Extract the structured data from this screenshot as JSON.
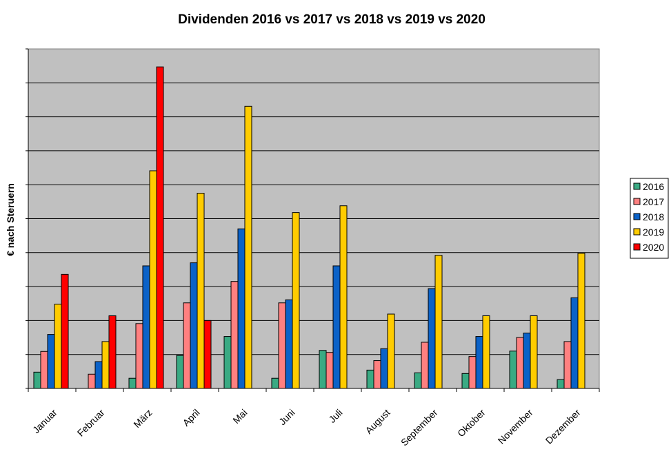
{
  "chart_data": {
    "type": "bar",
    "title": "Dividenden 2016 vs 2017 vs 2018 vs 2019 vs 2020",
    "xlabel": "",
    "ylabel": "€ nach Steruern",
    "ylim": [
      0,
      100
    ],
    "grid": true,
    "legend_position": "right",
    "categories": [
      "Januar",
      "Februar",
      "März",
      "April",
      "Mai",
      "Juni",
      "Juli",
      "August",
      "September",
      "Oktober",
      "November",
      "Dezember"
    ],
    "series": [
      {
        "name": "2016",
        "color": "#3AAA83",
        "values": [
          4.8,
          0,
          3.0,
          9.7,
          15.3,
          3.0,
          11.2,
          5.4,
          4.6,
          4.4,
          11.0,
          2.6
        ]
      },
      {
        "name": "2017",
        "color": "#FF8080",
        "values": [
          10.9,
          4.2,
          19.1,
          25.2,
          31.5,
          25.2,
          10.6,
          8.2,
          13.6,
          9.4,
          15.0,
          13.8
        ]
      },
      {
        "name": "2018",
        "color": "#0B62C8",
        "values": [
          15.9,
          7.9,
          36.1,
          37.0,
          47.0,
          26.1,
          36.1,
          11.7,
          29.4,
          15.3,
          16.3,
          26.7
        ]
      },
      {
        "name": "2019",
        "color": "#FFCC00",
        "values": [
          24.8,
          13.8,
          64.1,
          57.5,
          83.1,
          51.8,
          53.8,
          21.9,
          39.2,
          21.4,
          21.4,
          39.8
        ]
      },
      {
        "name": "2020",
        "color": "#FF0000",
        "values": [
          33.6,
          21.4,
          94.7,
          20.0,
          null,
          null,
          null,
          null,
          null,
          null,
          null,
          null
        ]
      }
    ]
  }
}
